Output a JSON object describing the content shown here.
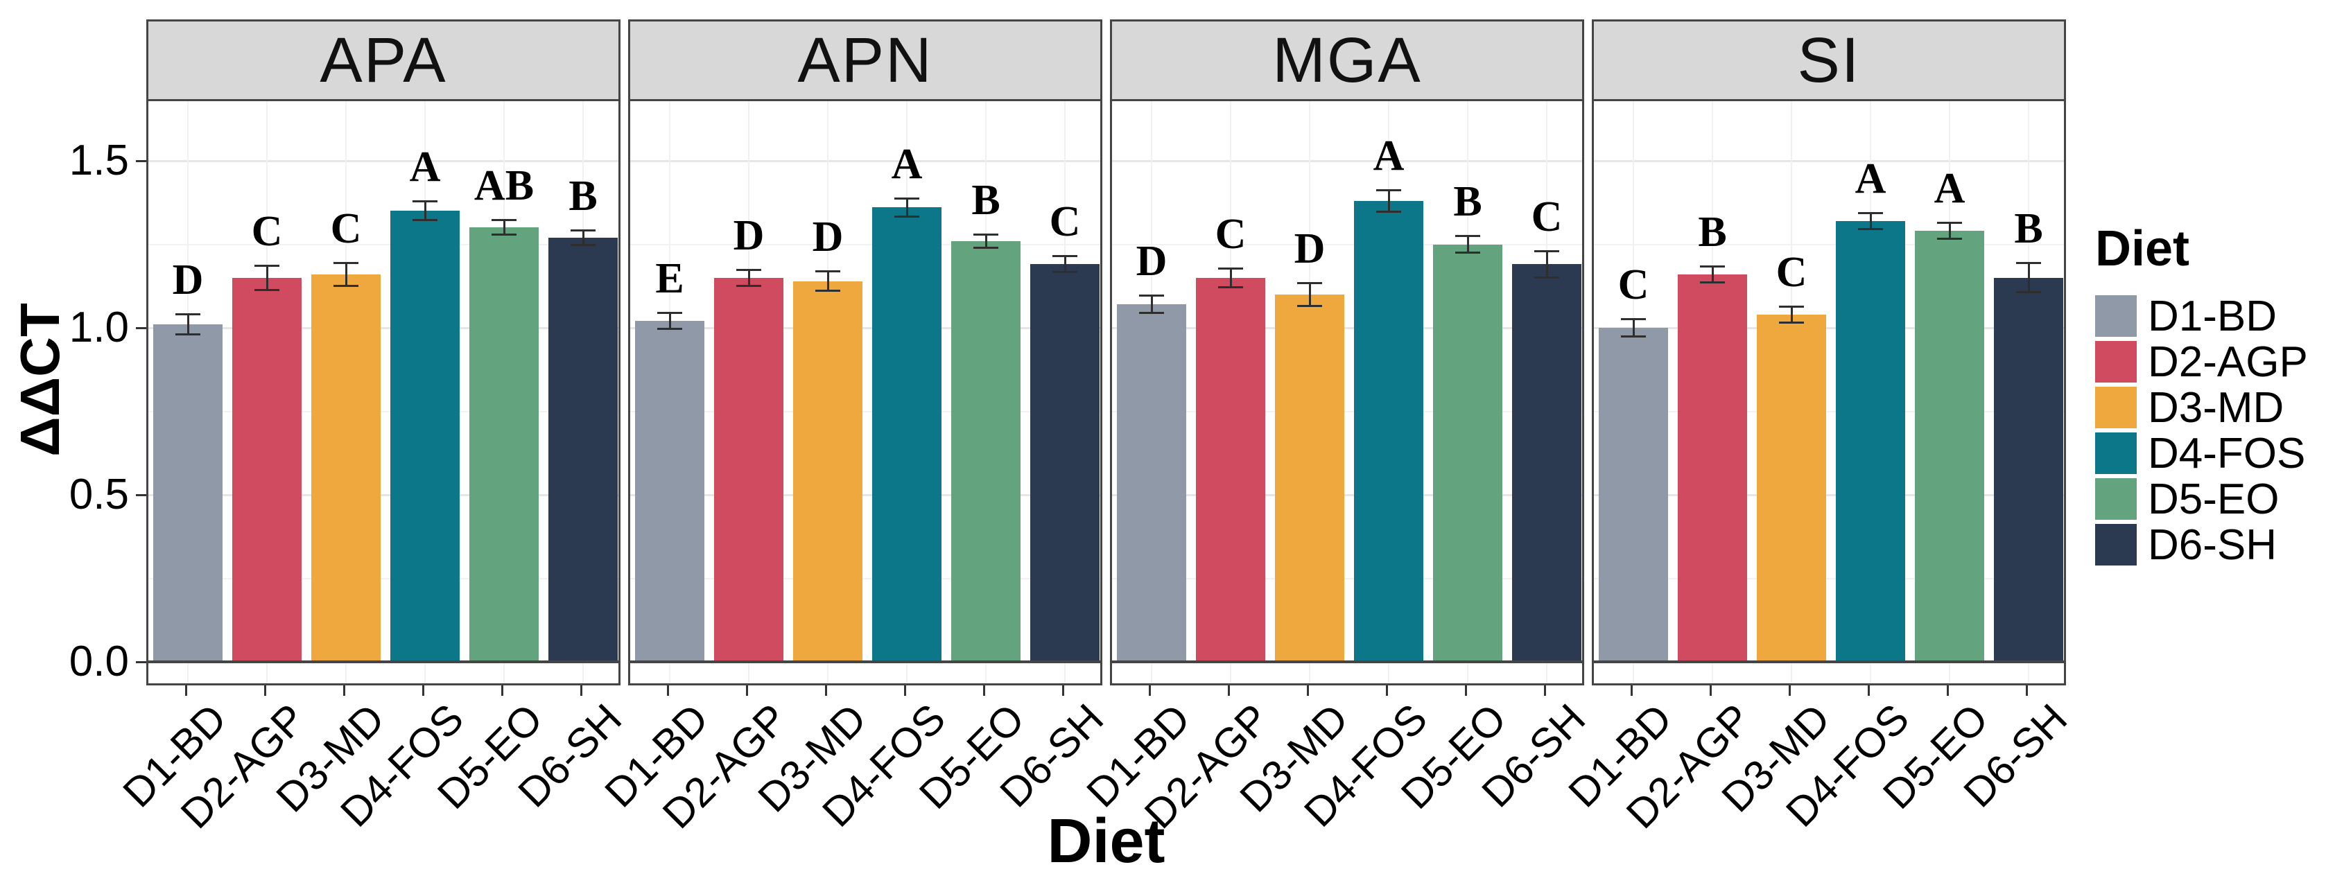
{
  "figure": {
    "y_axis": {
      "title": "ΔΔCT",
      "ticks": [
        "0.0",
        "0.5",
        "1.0",
        "1.5"
      ],
      "tick_values": [
        0.0,
        0.5,
        1.0,
        1.5
      ]
    },
    "x_axis": {
      "title": "Diet",
      "tick_labels": [
        "D1-BD",
        "D2-AGP",
        "D3-MD",
        "D4-FOS",
        "D5-EO",
        "D6-SH"
      ]
    },
    "legend": {
      "title": "Diet",
      "entries": [
        {
          "label": "D1-BD",
          "color": "#8F99A8"
        },
        {
          "label": "D2-AGP",
          "color": "#D04B60"
        },
        {
          "label": "D3-MD",
          "color": "#EEA83E"
        },
        {
          "label": "D4-FOS",
          "color": "#0B7789"
        },
        {
          "label": "D5-EO",
          "color": "#63A37E"
        },
        {
          "label": "D6-SH",
          "color": "#2B3A51"
        }
      ]
    }
  },
  "chart_data": {
    "type": "bar",
    "title": "",
    "xlabel": "Diet",
    "ylabel": "ΔΔCT",
    "ylim": [
      0,
      1.68
    ],
    "major_gridlines": [
      0.5,
      1.0,
      1.5
    ],
    "minor_gridlines": [
      0.25,
      0.75,
      1.25
    ],
    "grid": true,
    "legend_position": "right",
    "facets": [
      "APA",
      "APN",
      "MGA",
      "SI"
    ],
    "categories": [
      "D1-BD",
      "D2-AGP",
      "D3-MD",
      "D4-FOS",
      "D5-EO",
      "D6-SH"
    ],
    "colors": {
      "D1-BD": "#8F99A8",
      "D2-AGP": "#D04B60",
      "D3-MD": "#EEA83E",
      "D4-FOS": "#0B7789",
      "D5-EO": "#63A37E",
      "D6-SH": "#2B3A51"
    },
    "panels": [
      {
        "facet": "APA",
        "bars": [
          {
            "diet": "D1-BD",
            "value": 1.01,
            "error": 0.031,
            "letter": "D"
          },
          {
            "diet": "D2-AGP",
            "value": 1.15,
            "error": 0.037,
            "letter": "C"
          },
          {
            "diet": "D3-MD",
            "value": 1.16,
            "error": 0.035,
            "letter": "C"
          },
          {
            "diet": "D4-FOS",
            "value": 1.35,
            "error": 0.029,
            "letter": "A"
          },
          {
            "diet": "D5-EO",
            "value": 1.3,
            "error": 0.023,
            "letter": "AB"
          },
          {
            "diet": "D6-SH",
            "value": 1.27,
            "error": 0.023,
            "letter": "B"
          }
        ]
      },
      {
        "facet": "APN",
        "bars": [
          {
            "diet": "D1-BD",
            "value": 1.02,
            "error": 0.025,
            "letter": "E"
          },
          {
            "diet": "D2-AGP",
            "value": 1.15,
            "error": 0.025,
            "letter": "D"
          },
          {
            "diet": "D3-MD",
            "value": 1.14,
            "error": 0.031,
            "letter": "D"
          },
          {
            "diet": "D4-FOS",
            "value": 1.36,
            "error": 0.029,
            "letter": "A"
          },
          {
            "diet": "D5-EO",
            "value": 1.26,
            "error": 0.021,
            "letter": "B"
          },
          {
            "diet": "D6-SH",
            "value": 1.19,
            "error": 0.025,
            "letter": "C"
          }
        ]
      },
      {
        "facet": "MGA",
        "bars": [
          {
            "diet": "D1-BD",
            "value": 1.07,
            "error": 0.027,
            "letter": "D"
          },
          {
            "diet": "D2-AGP",
            "value": 1.15,
            "error": 0.029,
            "letter": "C"
          },
          {
            "diet": "D3-MD",
            "value": 1.1,
            "error": 0.035,
            "letter": "D"
          },
          {
            "diet": "D4-FOS",
            "value": 1.38,
            "error": 0.033,
            "letter": "A"
          },
          {
            "diet": "D5-EO",
            "value": 1.25,
            "error": 0.025,
            "letter": "B"
          },
          {
            "diet": "D6-SH",
            "value": 1.19,
            "error": 0.041,
            "letter": "C"
          }
        ]
      },
      {
        "facet": "SI",
        "bars": [
          {
            "diet": "D1-BD",
            "value": 1.0,
            "error": 0.027,
            "letter": "C"
          },
          {
            "diet": "D2-AGP",
            "value": 1.16,
            "error": 0.025,
            "letter": "B"
          },
          {
            "diet": "D3-MD",
            "value": 1.04,
            "error": 0.025,
            "letter": "C"
          },
          {
            "diet": "D4-FOS",
            "value": 1.32,
            "error": 0.025,
            "letter": "A"
          },
          {
            "diet": "D5-EO",
            "value": 1.29,
            "error": 0.025,
            "letter": "A"
          },
          {
            "diet": "D6-SH",
            "value": 1.15,
            "error": 0.045,
            "letter": "B"
          }
        ]
      }
    ]
  }
}
